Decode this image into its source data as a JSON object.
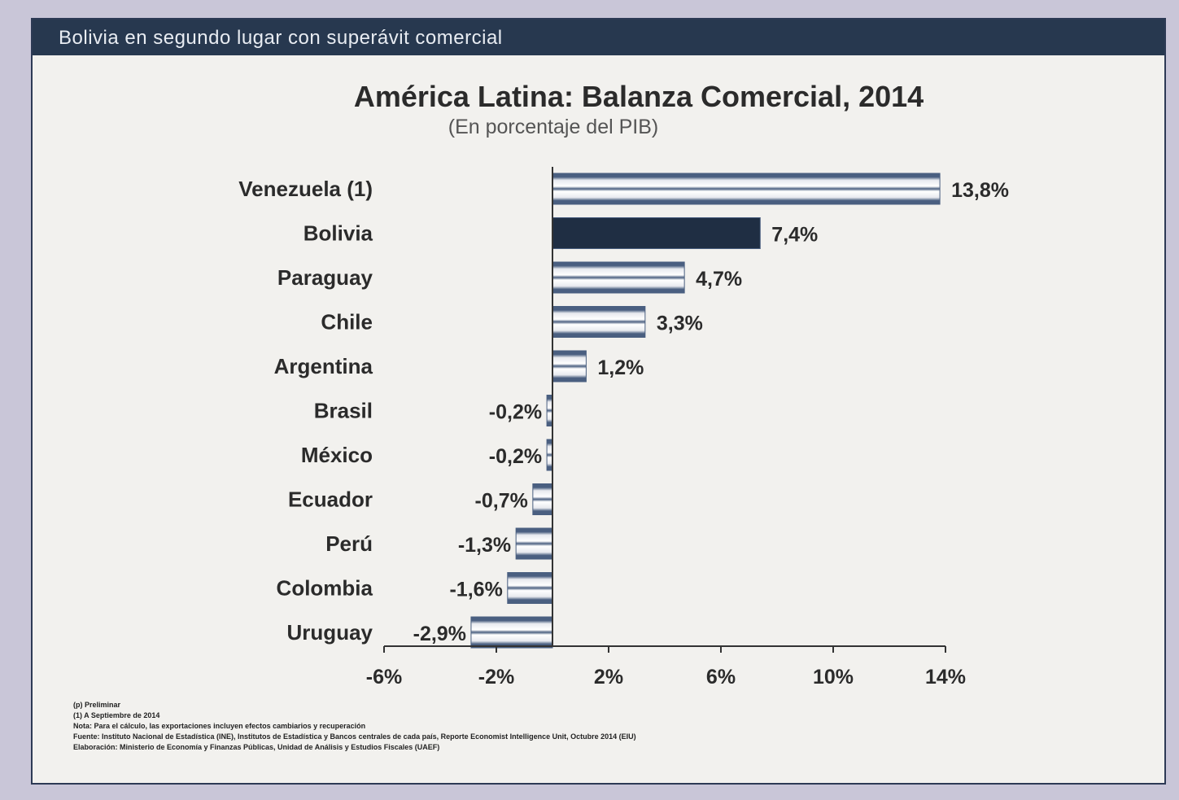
{
  "banner": {
    "text": "Bolivia en segundo lugar con superávit comercial"
  },
  "chart_data": {
    "type": "bar",
    "orientation": "horizontal",
    "title": "América Latina: Balanza Comercial, 2014",
    "subtitle": "(En porcentaje del PIB)",
    "categories": [
      "Venezuela (1)",
      "Bolivia",
      "Paraguay",
      "Chile",
      "Argentina",
      "Brasil",
      "México",
      "Ecuador",
      "Perú",
      "Colombia",
      "Uruguay"
    ],
    "values": [
      13.8,
      7.4,
      4.7,
      3.3,
      1.2,
      -0.2,
      -0.2,
      -0.7,
      -1.3,
      -1.6,
      -2.9
    ],
    "value_labels": [
      "13,8%",
      "7,4%",
      "4,7%",
      "3,3%",
      "1,2%",
      "-0,2%",
      "-0,2%",
      "-0,7%",
      "-1,3%",
      "-1,6%",
      "-2,9%"
    ],
    "highlight": "Bolivia",
    "xlim": [
      -6,
      14
    ],
    "xticks": [
      -6,
      -2,
      2,
      6,
      10,
      14
    ],
    "xtick_labels": [
      "-6%",
      "-2%",
      "2%",
      "6%",
      "10%",
      "14%"
    ],
    "grid": false,
    "colors": {
      "bar_fill": "#e8eaef",
      "bar_stripe": "#4a5f80",
      "highlight": "#1f2e43",
      "axis": "#333333",
      "text": "#2b2b2b"
    }
  },
  "notes": [
    "(p) Preliminar",
    "(1) A Septiembre de 2014",
    "Nota: Para el cálculo, las exportaciones incluyen efectos cambiarios y recuperación",
    "Fuente: Instituto Nacional de Estadística (INE), Institutos de Estadística y Bancos centrales de cada país, Reporte Economist Intelligence Unit, Octubre 2014 (EIU)",
    "Elaboración: Ministerio de Economía y Finanzas Públicas, Unidad de Análisis y Estudios Fiscales (UAEF)"
  ]
}
